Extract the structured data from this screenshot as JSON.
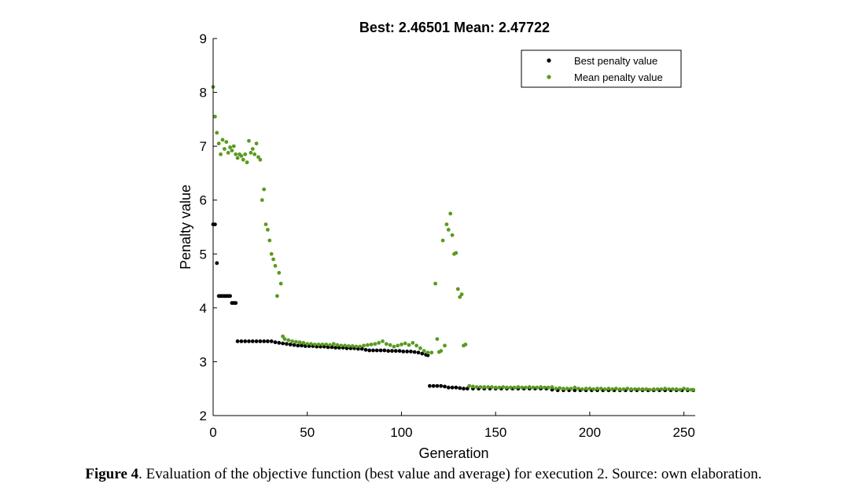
{
  "chart_data": {
    "type": "scatter",
    "title": "Best: 2.46501 Mean: 2.47722",
    "xlabel": "Generation",
    "ylabel": "Penalty value",
    "xlim": [
      0,
      256
    ],
    "ylim": [
      2,
      9
    ],
    "xticks": [
      0,
      50,
      100,
      150,
      200,
      250
    ],
    "yticks": [
      2,
      3,
      4,
      5,
      6,
      7,
      8,
      9
    ],
    "grid": false,
    "legend_position": "top-right",
    "series": [
      {
        "name": "Best penalty value",
        "color": "#000000",
        "points": [
          [
            0,
            5.55
          ],
          [
            1,
            5.55
          ],
          [
            2,
            4.83
          ],
          [
            3,
            4.22
          ],
          [
            4,
            4.22
          ],
          [
            5,
            4.22
          ],
          [
            6,
            4.22
          ],
          [
            7,
            4.22
          ],
          [
            8,
            4.22
          ],
          [
            9,
            4.22
          ],
          [
            10,
            4.09
          ],
          [
            11,
            4.09
          ],
          [
            12,
            4.09
          ],
          [
            13,
            3.38
          ],
          [
            15,
            3.38
          ],
          [
            17,
            3.38
          ],
          [
            19,
            3.38
          ],
          [
            21,
            3.38
          ],
          [
            23,
            3.38
          ],
          [
            25,
            3.38
          ],
          [
            27,
            3.38
          ],
          [
            29,
            3.38
          ],
          [
            31,
            3.38
          ],
          [
            33,
            3.36
          ],
          [
            35,
            3.35
          ],
          [
            37,
            3.34
          ],
          [
            39,
            3.33
          ],
          [
            41,
            3.32
          ],
          [
            43,
            3.31
          ],
          [
            45,
            3.3
          ],
          [
            47,
            3.3
          ],
          [
            49,
            3.29
          ],
          [
            51,
            3.29
          ],
          [
            53,
            3.29
          ],
          [
            55,
            3.28
          ],
          [
            57,
            3.28
          ],
          [
            59,
            3.28
          ],
          [
            61,
            3.27
          ],
          [
            63,
            3.27
          ],
          [
            65,
            3.26
          ],
          [
            67,
            3.26
          ],
          [
            69,
            3.26
          ],
          [
            71,
            3.25
          ],
          [
            73,
            3.25
          ],
          [
            75,
            3.25
          ],
          [
            77,
            3.24
          ],
          [
            79,
            3.24
          ],
          [
            81,
            3.22
          ],
          [
            83,
            3.21
          ],
          [
            85,
            3.21
          ],
          [
            87,
            3.21
          ],
          [
            89,
            3.21
          ],
          [
            91,
            3.21
          ],
          [
            93,
            3.2
          ],
          [
            95,
            3.2
          ],
          [
            97,
            3.2
          ],
          [
            99,
            3.2
          ],
          [
            101,
            3.19
          ],
          [
            103,
            3.19
          ],
          [
            105,
            3.19
          ],
          [
            107,
            3.18
          ],
          [
            109,
            3.17
          ],
          [
            111,
            3.15
          ],
          [
            113,
            3.13
          ],
          [
            114,
            3.12
          ],
          [
            115,
            2.55
          ],
          [
            117,
            2.55
          ],
          [
            119,
            2.55
          ],
          [
            121,
            2.55
          ],
          [
            123,
            2.54
          ],
          [
            125,
            2.52
          ],
          [
            127,
            2.52
          ],
          [
            129,
            2.52
          ],
          [
            131,
            2.51
          ],
          [
            133,
            2.5
          ],
          [
            135,
            2.5
          ],
          [
            138,
            2.5
          ],
          [
            141,
            2.5
          ],
          [
            144,
            2.5
          ],
          [
            147,
            2.5
          ],
          [
            150,
            2.5
          ],
          [
            153,
            2.5
          ],
          [
            156,
            2.5
          ],
          [
            159,
            2.5
          ],
          [
            162,
            2.5
          ],
          [
            165,
            2.5
          ],
          [
            168,
            2.5
          ],
          [
            171,
            2.5
          ],
          [
            174,
            2.5
          ],
          [
            177,
            2.5
          ],
          [
            180,
            2.48
          ],
          [
            183,
            2.47
          ],
          [
            186,
            2.47
          ],
          [
            189,
            2.47
          ],
          [
            192,
            2.47
          ],
          [
            195,
            2.47
          ],
          [
            198,
            2.47
          ],
          [
            201,
            2.47
          ],
          [
            204,
            2.47
          ],
          [
            207,
            2.47
          ],
          [
            210,
            2.47
          ],
          [
            213,
            2.47
          ],
          [
            216,
            2.47
          ],
          [
            219,
            2.47
          ],
          [
            222,
            2.47
          ],
          [
            225,
            2.47
          ],
          [
            228,
            2.47
          ],
          [
            231,
            2.47
          ],
          [
            234,
            2.47
          ],
          [
            237,
            2.47
          ],
          [
            240,
            2.47
          ],
          [
            243,
            2.47
          ],
          [
            246,
            2.47
          ],
          [
            249,
            2.47
          ],
          [
            252,
            2.47
          ],
          [
            255,
            2.47
          ]
        ]
      },
      {
        "name": "Mean penalty value",
        "color": "#5a9a1f",
        "points": [
          [
            0,
            8.1
          ],
          [
            1,
            7.55
          ],
          [
            2,
            7.25
          ],
          [
            3,
            7.05
          ],
          [
            4,
            6.85
          ],
          [
            5,
            7.12
          ],
          [
            6,
            6.95
          ],
          [
            7,
            7.08
          ],
          [
            8,
            6.88
          ],
          [
            9,
            6.98
          ],
          [
            10,
            6.92
          ],
          [
            11,
            7.0
          ],
          [
            12,
            6.85
          ],
          [
            13,
            6.78
          ],
          [
            14,
            6.85
          ],
          [
            15,
            6.82
          ],
          [
            16,
            6.75
          ],
          [
            17,
            6.85
          ],
          [
            18,
            6.7
          ],
          [
            19,
            7.1
          ],
          [
            20,
            6.88
          ],
          [
            21,
            6.95
          ],
          [
            22,
            6.85
          ],
          [
            23,
            7.05
          ],
          [
            24,
            6.8
          ],
          [
            25,
            6.75
          ],
          [
            26,
            6.0
          ],
          [
            27,
            6.2
          ],
          [
            28,
            5.55
          ],
          [
            29,
            5.45
          ],
          [
            30,
            5.25
          ],
          [
            31,
            5.0
          ],
          [
            32,
            4.9
          ],
          [
            33,
            4.78
          ],
          [
            34,
            4.22
          ],
          [
            35,
            4.65
          ],
          [
            36,
            4.45
          ],
          [
            37,
            3.47
          ],
          [
            38,
            3.42
          ],
          [
            40,
            3.4
          ],
          [
            42,
            3.38
          ],
          [
            44,
            3.37
          ],
          [
            46,
            3.36
          ],
          [
            48,
            3.35
          ],
          [
            50,
            3.33
          ],
          [
            52,
            3.33
          ],
          [
            54,
            3.32
          ],
          [
            56,
            3.32
          ],
          [
            58,
            3.32
          ],
          [
            60,
            3.32
          ],
          [
            62,
            3.31
          ],
          [
            64,
            3.33
          ],
          [
            66,
            3.31
          ],
          [
            68,
            3.3
          ],
          [
            70,
            3.3
          ],
          [
            72,
            3.29
          ],
          [
            74,
            3.29
          ],
          [
            76,
            3.28
          ],
          [
            78,
            3.28
          ],
          [
            80,
            3.3
          ],
          [
            82,
            3.31
          ],
          [
            84,
            3.32
          ],
          [
            86,
            3.33
          ],
          [
            88,
            3.35
          ],
          [
            90,
            3.38
          ],
          [
            92,
            3.33
          ],
          [
            94,
            3.31
          ],
          [
            96,
            3.28
          ],
          [
            98,
            3.3
          ],
          [
            100,
            3.32
          ],
          [
            102,
            3.34
          ],
          [
            104,
            3.31
          ],
          [
            106,
            3.35
          ],
          [
            108,
            3.3
          ],
          [
            110,
            3.25
          ],
          [
            112,
            3.2
          ],
          [
            114,
            3.17
          ],
          [
            116,
            3.17
          ],
          [
            118,
            4.45
          ],
          [
            119,
            3.42
          ],
          [
            120,
            3.18
          ],
          [
            121,
            3.2
          ],
          [
            122,
            5.25
          ],
          [
            123,
            3.3
          ],
          [
            124,
            5.55
          ],
          [
            125,
            5.45
          ],
          [
            126,
            5.75
          ],
          [
            127,
            5.35
          ],
          [
            128,
            5.0
          ],
          [
            129,
            5.02
          ],
          [
            130,
            4.35
          ],
          [
            131,
            4.2
          ],
          [
            132,
            4.25
          ],
          [
            133,
            3.3
          ],
          [
            134,
            3.32
          ],
          [
            136,
            2.55
          ],
          [
            138,
            2.54
          ],
          [
            140,
            2.53
          ],
          [
            142,
            2.53
          ],
          [
            144,
            2.53
          ],
          [
            146,
            2.53
          ],
          [
            148,
            2.53
          ],
          [
            150,
            2.52
          ],
          [
            152,
            2.52
          ],
          [
            154,
            2.53
          ],
          [
            156,
            2.52
          ],
          [
            158,
            2.52
          ],
          [
            160,
            2.52
          ],
          [
            162,
            2.53
          ],
          [
            164,
            2.52
          ],
          [
            166,
            2.52
          ],
          [
            168,
            2.53
          ],
          [
            170,
            2.52
          ],
          [
            172,
            2.52
          ],
          [
            174,
            2.53
          ],
          [
            176,
            2.52
          ],
          [
            178,
            2.52
          ],
          [
            180,
            2.53
          ],
          [
            182,
            2.5
          ],
          [
            184,
            2.51
          ],
          [
            186,
            2.5
          ],
          [
            188,
            2.5
          ],
          [
            190,
            2.5
          ],
          [
            192,
            2.52
          ],
          [
            194,
            2.5
          ],
          [
            196,
            2.49
          ],
          [
            198,
            2.5
          ],
          [
            200,
            2.5
          ],
          [
            202,
            2.49
          ],
          [
            204,
            2.5
          ],
          [
            206,
            2.5
          ],
          [
            208,
            2.49
          ],
          [
            210,
            2.5
          ],
          [
            212,
            2.49
          ],
          [
            214,
            2.5
          ],
          [
            216,
            2.49
          ],
          [
            218,
            2.49
          ],
          [
            220,
            2.5
          ],
          [
            222,
            2.49
          ],
          [
            224,
            2.49
          ],
          [
            226,
            2.49
          ],
          [
            228,
            2.49
          ],
          [
            230,
            2.49
          ],
          [
            232,
            2.48
          ],
          [
            234,
            2.49
          ],
          [
            236,
            2.49
          ],
          [
            238,
            2.49
          ],
          [
            240,
            2.5
          ],
          [
            242,
            2.49
          ],
          [
            244,
            2.49
          ],
          [
            246,
            2.49
          ],
          [
            248,
            2.48
          ],
          [
            250,
            2.5
          ],
          [
            252,
            2.49
          ],
          [
            254,
            2.48
          ],
          [
            255,
            2.48
          ]
        ]
      }
    ]
  },
  "caption": {
    "label": "Figure 4",
    "text": ". Evaluation of the objective function (best value and average) for execution 2. Source: own elaboration."
  }
}
